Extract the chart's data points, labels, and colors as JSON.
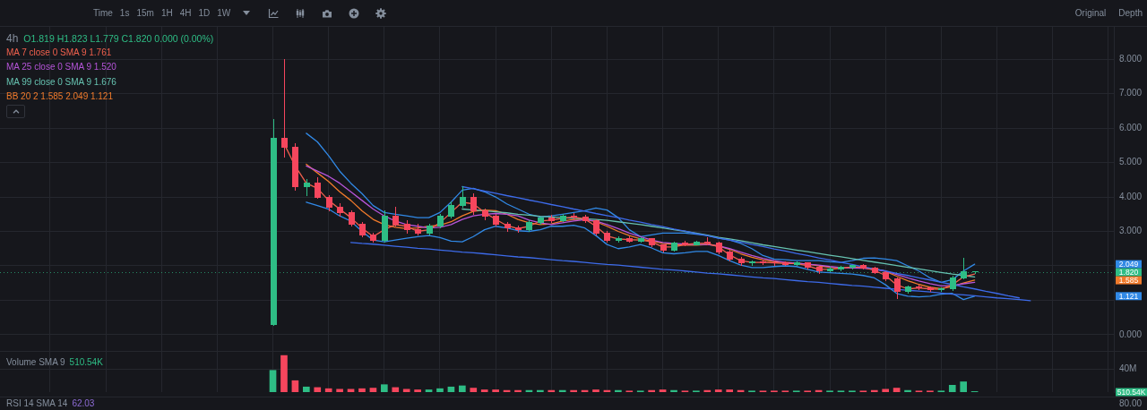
{
  "chart_data": [
    {
      "type": "other",
      "annotations": [
        "Time",
        "1s",
        "15m",
        "1H",
        "4H",
        "1D",
        "1W",
        "Original",
        "Depth"
      ]
    },
    {
      "type": "candlestick",
      "annotations": [
        "4h",
        "O1.819 H1.823 L1.779 C1.820 0.000 (0.00%)",
        {
          "text": "2.049",
          "y": 2.049
        },
        {
          "text": "1.585",
          "y": 1.585
        },
        {
          "text": "1.121",
          "y": 1.121
        }
      ],
      "categories": [
        null,
        null,
        null,
        null,
        null,
        null,
        null,
        null,
        null,
        null,
        null,
        null,
        null,
        null,
        null,
        null,
        null,
        null,
        null,
        null,
        null,
        null,
        null,
        null,
        null,
        null,
        null,
        null,
        null,
        null,
        null,
        null,
        null,
        null,
        null,
        null,
        null,
        null,
        null,
        null,
        null,
        null,
        null,
        null,
        null,
        null,
        null,
        null,
        null,
        null,
        null,
        null,
        null,
        null,
        null,
        null,
        null,
        null,
        null,
        null,
        null,
        null,
        null,
        null,
        null,
        null,
        null,
        null,
        null,
        null,
        null,
        null,
        null,
        null,
        null,
        null,
        null,
        null,
        null,
        null,
        null,
        null,
        null,
        null,
        null,
        null,
        null,
        null,
        null,
        null,
        null,
        null,
        null,
        null,
        null,
        null,
        null,
        null,
        null,
        null
      ],
      "ohlc": [
        null,
        null,
        null,
        null,
        null,
        null,
        null,
        null,
        null,
        null,
        null,
        null,
        null,
        null,
        null,
        null,
        null,
        null,
        null,
        null,
        null,
        null,
        null,
        null,
        [
          0.29,
          6.25,
          0.27,
          5.7
        ],
        [
          5.7,
          8,
          5.15,
          5.45
        ],
        [
          5.45,
          5.55,
          4.2,
          4.3
        ],
        [
          4.3,
          4.5,
          4.05,
          4.4
        ],
        [
          4.4,
          4.55,
          3.95,
          4
        ],
        [
          4,
          4.05,
          3.6,
          3.7
        ],
        [
          3.7,
          3.8,
          3.45,
          3.55
        ],
        [
          3.55,
          3.6,
          3.15,
          3.2
        ],
        [
          3.2,
          3.25,
          2.85,
          2.9
        ],
        [
          2.9,
          2.95,
          2.68,
          2.75
        ],
        [
          2.75,
          3.6,
          2.7,
          3.45
        ],
        [
          3.45,
          3.7,
          3.15,
          3.2
        ],
        [
          3.2,
          3.3,
          2.95,
          3.05
        ],
        [
          3.05,
          3.2,
          2.9,
          2.95
        ],
        [
          2.95,
          3.2,
          2.9,
          3.15
        ],
        [
          3.15,
          3.5,
          3.1,
          3.45
        ],
        [
          3.45,
          3.85,
          3.4,
          3.75
        ],
        [
          3.75,
          4.3,
          3.7,
          4
        ],
        [
          4,
          4.1,
          3.5,
          3.6
        ],
        [
          3.6,
          3.65,
          3.35,
          3.45
        ],
        [
          3.45,
          3.5,
          3.15,
          3.2
        ],
        [
          3.2,
          3.25,
          3,
          3.1
        ],
        [
          3.1,
          3.15,
          2.98,
          3.05
        ],
        [
          3.05,
          3.3,
          3,
          3.25
        ],
        [
          3.25,
          3.42,
          3.2,
          3.38
        ],
        [
          3.38,
          3.48,
          3.25,
          3.3
        ],
        [
          3.3,
          3.5,
          3.28,
          3.45
        ],
        [
          3.45,
          3.52,
          3.35,
          3.42
        ],
        [
          3.42,
          3.48,
          3.25,
          3.3
        ],
        [
          3.3,
          3.35,
          2.9,
          2.95
        ],
        [
          2.95,
          3,
          2.7,
          2.75
        ],
        [
          2.75,
          2.85,
          2.68,
          2.8
        ],
        [
          2.8,
          2.85,
          2.7,
          2.72
        ],
        [
          2.72,
          2.82,
          2.68,
          2.78
        ],
        [
          2.78,
          2.8,
          2.55,
          2.6
        ],
        [
          2.6,
          2.62,
          2.4,
          2.45
        ],
        [
          2.45,
          2.68,
          2.42,
          2.65
        ],
        [
          2.65,
          2.72,
          2.58,
          2.62
        ],
        [
          2.62,
          2.72,
          2.6,
          2.68
        ],
        [
          2.68,
          2.82,
          2.6,
          2.65
        ],
        [
          2.65,
          2.7,
          2.35,
          2.4
        ],
        [
          2.4,
          2.45,
          2.15,
          2.2
        ],
        [
          2.2,
          2.25,
          2.02,
          2.08
        ],
        [
          2.08,
          2.15,
          2,
          2.12
        ],
        [
          2.12,
          2.18,
          2.05,
          2.1
        ],
        [
          2.1,
          2.15,
          2.02,
          2.08
        ],
        [
          2.08,
          2.12,
          2,
          2.05
        ],
        [
          2.05,
          2.12,
          2,
          2.08
        ],
        [
          2.08,
          2.1,
          1.9,
          1.95
        ],
        [
          1.95,
          1.98,
          1.78,
          1.85
        ],
        [
          1.85,
          1.96,
          1.82,
          1.92
        ],
        [
          1.92,
          1.98,
          1.86,
          1.95
        ],
        [
          1.95,
          2.02,
          1.9,
          2
        ],
        [
          2,
          2.05,
          1.9,
          1.93
        ],
        [
          1.93,
          1.96,
          1.78,
          1.8
        ],
        [
          1.8,
          1.82,
          1.58,
          1.62
        ],
        [
          1.62,
          1.65,
          1.06,
          1.25
        ],
        [
          1.25,
          1.42,
          1.2,
          1.38
        ],
        [
          1.38,
          1.45,
          1.3,
          1.35
        ],
        [
          1.35,
          1.4,
          1.26,
          1.3
        ],
        [
          1.3,
          1.36,
          1.25,
          1.33
        ],
        [
          1.33,
          1.7,
          1.28,
          1.65
        ],
        [
          1.65,
          2.23,
          1.62,
          1.819
        ],
        [
          1.819,
          1.823,
          1.779,
          1.82
        ],
        null,
        null,
        null,
        null,
        null,
        null,
        null,
        null,
        null,
        null,
        null,
        null
      ],
      "colors": [
        null,
        null,
        null,
        null,
        null,
        null,
        null,
        null,
        null,
        null,
        null,
        null,
        null,
        null,
        null,
        null,
        null,
        null,
        null,
        null,
        null,
        null,
        null,
        null,
        "#2ebd85",
        "#f6465d",
        "#f6465d",
        "#2ebd85",
        "#f6465d",
        "#f6465d",
        "#f6465d",
        "#f6465d",
        "#f6465d",
        "#f6465d",
        "#2ebd85",
        "#f6465d",
        "#f6465d",
        "#f6465d",
        "#2ebd85",
        "#2ebd85",
        "#2ebd85",
        "#2ebd85",
        "#f6465d",
        "#f6465d",
        "#f6465d",
        "#f6465d",
        "#f6465d",
        "#2ebd85",
        "#2ebd85",
        "#f6465d",
        "#2ebd85",
        "#f6465d",
        "#f6465d",
        "#f6465d",
        "#f6465d",
        "#2ebd85",
        "#f6465d",
        "#2ebd85",
        "#f6465d",
        "#f6465d",
        "#2ebd85",
        "#f6465d",
        "#2ebd85",
        "#f6465d",
        "#f6465d",
        "#f6465d",
        "#f6465d",
        "#2ebd85",
        "#f6465d",
        "#f6465d",
        "#f6465d",
        "#2ebd85",
        "#f6465d",
        "#f6465d",
        "#2ebd85",
        "#2ebd85",
        "#2ebd85",
        "#f6465d",
        "#f6465d",
        "#f6465d",
        "#f6465d",
        "#2ebd85",
        "#f6465d",
        "#f6465d",
        "#2ebd85",
        "#2ebd85",
        "#2ebd85",
        "#2ebd85",
        null,
        null,
        null,
        null,
        null,
        null,
        null,
        null,
        null,
        null,
        null,
        null
      ],
      "series": [
        {
          "type": "line",
          "color": "#3d6bea",
          "values": [
            null,
            null,
            null,
            null,
            null,
            null,
            null,
            null,
            null,
            null,
            null,
            null,
            null,
            null,
            null,
            null,
            null,
            null,
            null,
            null,
            null,
            null,
            null,
            null,
            null,
            null,
            null,
            null,
            null,
            null,
            null,
            null,
            null,
            null,
            null,
            null,
            null,
            null,
            null,
            null,
            null,
            4.3,
            4.24,
            4.17,
            4.11,
            4.04,
            3.98,
            3.91,
            3.85,
            3.78,
            3.72,
            3.65,
            3.59,
            3.52,
            3.46,
            3.4,
            3.33,
            3.27,
            3.2,
            3.14,
            3.07,
            3.01,
            2.94,
            2.88,
            2.81,
            2.75,
            2.69,
            2.62,
            2.56,
            2.49,
            2.43,
            2.36,
            2.3,
            2.23,
            2.17,
            2.1,
            2.04,
            1.97,
            1.91,
            1.85,
            1.78,
            1.72,
            1.65,
            1.59,
            1.52,
            1.46,
            1.39,
            1.33,
            1.26,
            1.2,
            1.13,
            1.07,
            null,
            null,
            null,
            null,
            null,
            null,
            null,
            null
          ]
        },
        {
          "type": "line",
          "color": "#3d6bea",
          "values": [
            null,
            null,
            null,
            null,
            null,
            null,
            null,
            null,
            null,
            null,
            null,
            null,
            null,
            null,
            null,
            null,
            null,
            null,
            null,
            null,
            null,
            null,
            null,
            null,
            null,
            null,
            null,
            null,
            null,
            null,
            null,
            2.68,
            2.65,
            2.63,
            2.6,
            2.57,
            2.54,
            2.51,
            2.49,
            2.46,
            2.43,
            2.4,
            2.38,
            2.35,
            2.32,
            2.29,
            2.26,
            2.24,
            2.21,
            2.18,
            2.15,
            2.13,
            2.1,
            2.07,
            2.04,
            2.02,
            1.99,
            1.96,
            1.93,
            1.9,
            1.88,
            1.85,
            1.82,
            1.79,
            1.77,
            1.74,
            1.71,
            1.68,
            1.65,
            1.63,
            1.6,
            1.57,
            1.54,
            1.52,
            1.49,
            1.46,
            1.43,
            1.41,
            1.38,
            1.35,
            1.32,
            1.29,
            1.27,
            1.24,
            1.21,
            1.18,
            1.16,
            1.13,
            1.1,
            1.07,
            1.05,
            1.02,
            0.99,
            null,
            null,
            null,
            null,
            null,
            null,
            null
          ]
        },
        {
          "type": "line",
          "name": "MA 7 close 0 SMA 9 1.761",
          "color": "#f0604d",
          "values": [
            null,
            null,
            null,
            null,
            null,
            null,
            null,
            null,
            null,
            null,
            null,
            null,
            null,
            null,
            null,
            null,
            null,
            null,
            null,
            null,
            null,
            null,
            null,
            null,
            null,
            5.55,
            4.9,
            4.4,
            4.25,
            3.9,
            3.65,
            3.4,
            3.1,
            2.85,
            3.05,
            3.2,
            3.15,
            3,
            3.05,
            3.25,
            3.55,
            3.85,
            3.8,
            3.55,
            3.35,
            3.17,
            3.08,
            3.15,
            3.3,
            3.33,
            3.38,
            3.42,
            3.36,
            3.15,
            2.87,
            2.78,
            2.76,
            2.75,
            2.7,
            2.55,
            2.55,
            2.62,
            2.65,
            2.66,
            2.55,
            2.32,
            2.15,
            2.1,
            2.1,
            2.09,
            2.07,
            2.07,
            2,
            1.9,
            1.9,
            1.93,
            1.97,
            1.96,
            1.87,
            1.72,
            1.45,
            1.33,
            1.36,
            1.33,
            1.32,
            1.45,
            1.68,
            1.761,
            null,
            null,
            null,
            null,
            null,
            null,
            null,
            null,
            null,
            null,
            null,
            null
          ]
        },
        {
          "type": "line",
          "name": "MA 25 close 0 SMA 9 1.520",
          "color": "#b554d8",
          "values": [
            null,
            null,
            null,
            null,
            null,
            null,
            null,
            null,
            null,
            null,
            null,
            null,
            null,
            null,
            null,
            null,
            null,
            null,
            null,
            null,
            null,
            null,
            null,
            null,
            null,
            null,
            null,
            4.9,
            4.75,
            4.6,
            4.4,
            4.15,
            3.9,
            3.65,
            3.45,
            3.3,
            3.2,
            3.15,
            3.1,
            3.12,
            3.2,
            3.35,
            3.45,
            3.5,
            3.52,
            3.5,
            3.45,
            3.33,
            3.25,
            3.2,
            3.25,
            3.3,
            3.34,
            3.3,
            3.2,
            3.08,
            2.95,
            2.85,
            2.75,
            2.68,
            2.65,
            2.63,
            2.62,
            2.62,
            2.58,
            2.5,
            2.4,
            2.3,
            2.22,
            2.15,
            2.1,
            2.08,
            2.05,
            2.02,
            1.98,
            1.95,
            1.94,
            1.93,
            1.9,
            1.85,
            1.75,
            1.65,
            1.56,
            1.48,
            1.42,
            1.43,
            1.48,
            1.52,
            null,
            null,
            null,
            null,
            null,
            null,
            null,
            null,
            null,
            null,
            null,
            null
          ]
        },
        {
          "type": "line",
          "name": "MA 99 close 0 SMA 9 1.676",
          "color": "#66c2b0",
          "values": [
            null,
            null,
            null,
            null,
            null,
            null,
            null,
            null,
            null,
            null,
            null,
            null,
            null,
            null,
            null,
            null,
            null,
            null,
            null,
            null,
            null,
            null,
            null,
            null,
            null,
            null,
            null,
            null,
            null,
            null,
            null,
            null,
            null,
            null,
            null,
            null,
            null,
            null,
            null,
            null,
            null,
            3.65,
            3.62,
            3.6,
            3.57,
            3.54,
            3.5,
            3.47,
            3.44,
            3.42,
            3.4,
            3.38,
            3.37,
            3.35,
            3.32,
            3.28,
            3.24,
            3.2,
            3.15,
            3.1,
            3.05,
            3,
            2.95,
            2.89,
            2.83,
            2.78,
            2.73,
            2.67,
            2.61,
            2.56,
            2.51,
            2.46,
            2.41,
            2.36,
            2.31,
            2.26,
            2.21,
            2.16,
            2.11,
            2.06,
            2.01,
            1.96,
            1.91,
            1.86,
            1.81,
            1.76,
            1.72,
            1.676,
            null,
            null,
            null,
            null,
            null,
            null,
            null,
            null,
            null,
            null,
            null,
            null
          ]
        },
        {
          "type": "line",
          "name": "BB 20 2 1.585 2.049 1.121",
          "color": "#f07a2b",
          "values": [
            null,
            null,
            null,
            null,
            null,
            null,
            null,
            null,
            null,
            null,
            null,
            null,
            null,
            null,
            null,
            null,
            null,
            null,
            null,
            null,
            null,
            null,
            null,
            null,
            null,
            null,
            null,
            4.95,
            4.7,
            4.45,
            4.15,
            3.9,
            3.6,
            3.35,
            3.2,
            3.12,
            3.08,
            3.1,
            3.15,
            3.18,
            3.28,
            3.45,
            3.58,
            3.62,
            3.6,
            3.5,
            3.35,
            3.25,
            3.2,
            3.22,
            3.3,
            3.35,
            3.35,
            3.28,
            3.15,
            3,
            2.88,
            2.78,
            2.72,
            2.65,
            2.62,
            2.6,
            2.6,
            2.62,
            2.58,
            2.48,
            2.35,
            2.25,
            2.17,
            2.12,
            2.1,
            2.08,
            2.05,
            2,
            1.96,
            1.94,
            1.94,
            1.95,
            1.92,
            1.84,
            1.7,
            1.57,
            1.46,
            1.38,
            1.34,
            1.4,
            1.5,
            1.585,
            null,
            null,
            null,
            null,
            null,
            null,
            null,
            null,
            null,
            null,
            null,
            null
          ]
        },
        {
          "type": "line",
          "color": "#3189e6",
          "values": [
            null,
            null,
            null,
            null,
            null,
            null,
            null,
            null,
            null,
            null,
            null,
            null,
            null,
            null,
            null,
            null,
            null,
            null,
            null,
            null,
            null,
            null,
            null,
            null,
            null,
            null,
            null,
            5.85,
            5.6,
            5.2,
            4.75,
            4.4,
            4.1,
            3.75,
            3.55,
            3.5,
            3.45,
            3.4,
            3.4,
            3.55,
            3.85,
            4.2,
            4.25,
            4.15,
            4,
            3.8,
            3.65,
            3.5,
            3.42,
            3.45,
            3.5,
            3.55,
            3.6,
            3.68,
            3.62,
            3.4,
            3.05,
            2.85,
            2.9,
            2.95,
            2.95,
            2.95,
            2.92,
            2.88,
            2.8,
            2.75,
            2.65,
            2.5,
            2.3,
            2.2,
            2.18,
            2.15,
            2.15,
            2.15,
            2.12,
            2.1,
            2.15,
            2.22,
            2.23,
            2.2,
            2.15,
            2,
            1.85,
            1.65,
            1.52,
            1.6,
            1.85,
            2.049,
            null,
            null,
            null,
            null,
            null,
            null,
            null,
            null,
            null,
            null,
            null,
            null
          ]
        },
        {
          "type": "line",
          "color": "#3189e6",
          "values": [
            null,
            null,
            null,
            null,
            null,
            null,
            null,
            null,
            null,
            null,
            null,
            null,
            null,
            null,
            null,
            null,
            null,
            null,
            null,
            null,
            null,
            null,
            null,
            null,
            null,
            null,
            null,
            3.85,
            3.75,
            3.65,
            3.45,
            3.3,
            3,
            2.75,
            2.7,
            2.75,
            2.8,
            2.85,
            2.88,
            2.82,
            2.72,
            2.7,
            2.85,
            3.05,
            3.15,
            3.1,
            3.02,
            3,
            3.05,
            3.15,
            3.15,
            3.18,
            3.1,
            2.88,
            2.62,
            2.5,
            2.55,
            2.62,
            2.52,
            2.38,
            2.35,
            2.38,
            2.42,
            2.42,
            2.3,
            2.15,
            2.02,
            1.95,
            1.95,
            1.98,
            2,
            1.98,
            1.9,
            1.82,
            1.8,
            1.78,
            1.76,
            1.72,
            1.65,
            1.45,
            1.2,
            1.12,
            1.1,
            1.12,
            1.18,
            1.2,
            1.02,
            1.121,
            null,
            null,
            null,
            null,
            null,
            null,
            null,
            null,
            null,
            null,
            null,
            null
          ]
        }
      ],
      "ylim": [
        -0.47,
        8.94
      ],
      "yticks": [
        {
          "value": 0,
          "label": "0.000"
        },
        {
          "value": 1,
          "label": null
        },
        {
          "value": 2,
          "label": null
        },
        {
          "value": 3,
          "label": "3.000"
        },
        {
          "value": 4,
          "label": "4.000"
        },
        {
          "value": 5,
          "label": "5.000"
        },
        {
          "value": 6,
          "label": "6.000"
        },
        {
          "value": 7,
          "label": "7.000"
        },
        {
          "value": 8,
          "label": "8.000"
        }
      ],
      "ref_lines": [
        {
          "axis": "y",
          "value": 1.82,
          "label": "1.820",
          "color": "#2ebd85",
          "line_style": "dotted"
        }
      ],
      "grid": true,
      "tick_labels": "y",
      "legend": "top left"
    },
    {
      "type": "bar",
      "title": "Volume SMA 9",
      "annotations": [
        "510.54K"
      ],
      "categories": [
        null,
        null,
        null,
        null,
        null,
        null,
        null,
        null,
        null,
        null,
        null,
        null,
        null,
        null,
        null,
        null,
        null,
        null,
        null,
        null,
        null,
        null,
        null,
        null,
        null,
        null,
        null,
        null,
        null,
        null,
        null,
        null,
        null,
        null,
        null,
        null,
        null,
        null,
        null,
        null,
        null,
        null,
        null,
        null,
        null,
        null,
        null,
        null,
        null,
        null,
        null,
        null,
        null,
        null,
        null,
        null,
        null,
        null,
        null,
        null,
        null,
        null,
        null,
        null,
        null,
        null,
        null,
        null,
        null,
        null,
        null,
        null,
        null,
        null,
        null,
        null,
        null,
        null,
        null,
        null,
        null,
        null,
        null,
        null,
        null,
        null,
        null,
        null,
        null,
        null,
        null,
        null,
        null,
        null,
        null,
        null,
        null,
        null,
        null,
        null
      ],
      "values": [
        null,
        null,
        null,
        null,
        null,
        null,
        null,
        null,
        null,
        null,
        null,
        null,
        null,
        null,
        null,
        null,
        null,
        null,
        null,
        null,
        null,
        null,
        null,
        null,
        38000000,
        64000000,
        20000000,
        9000000,
        8000000,
        6000000,
        5000000,
        5000000,
        6000000,
        7000000,
        13000000,
        8000000,
        5000000,
        4000000,
        4000000,
        6000000,
        9000000,
        11000000,
        7000000,
        4000000,
        4000000,
        3000000,
        3000000,
        3000000,
        3000000,
        3000000,
        3000000,
        3000000,
        3000000,
        4000000,
        3000000,
        3000000,
        2000000,
        2000000,
        3000000,
        4000000,
        3000000,
        2000000,
        2000000,
        3000000,
        4000000,
        4000000,
        3000000,
        2000000,
        2000000,
        2000000,
        2000000,
        2000000,
        2000000,
        3000000,
        2000000,
        2000000,
        2000000,
        2000000,
        3000000,
        5000000,
        7000000,
        3000000,
        2000000,
        2000000,
        2000000,
        12000000,
        18000000,
        1000000,
        null,
        null,
        null,
        null,
        null,
        null,
        null,
        null,
        null,
        null,
        null,
        null
      ],
      "colors": [
        null,
        null,
        null,
        null,
        null,
        null,
        null,
        null,
        null,
        null,
        null,
        null,
        null,
        null,
        null,
        null,
        null,
        null,
        null,
        null,
        null,
        null,
        null,
        null,
        "#2ebd85",
        "#f6465d",
        "#f6465d",
        "#2ebd85",
        "#f6465d",
        "#f6465d",
        "#f6465d",
        "#f6465d",
        "#f6465d",
        "#f6465d",
        "#2ebd85",
        "#f6465d",
        "#f6465d",
        "#f6465d",
        "#2ebd85",
        "#2ebd85",
        "#2ebd85",
        "#2ebd85",
        "#f6465d",
        "#f6465d",
        "#f6465d",
        "#f6465d",
        "#f6465d",
        "#2ebd85",
        "#2ebd85",
        "#f6465d",
        "#2ebd85",
        "#f6465d",
        "#f6465d",
        "#f6465d",
        "#f6465d",
        "#2ebd85",
        "#f6465d",
        "#2ebd85",
        "#f6465d",
        "#f6465d",
        "#2ebd85",
        "#f6465d",
        "#2ebd85",
        "#f6465d",
        "#f6465d",
        "#f6465d",
        "#f6465d",
        "#2ebd85",
        "#f6465d",
        "#f6465d",
        "#f6465d",
        "#2ebd85",
        "#f6465d",
        "#f6465d",
        "#2ebd85",
        "#2ebd85",
        "#2ebd85",
        "#f6465d",
        "#f6465d",
        "#f6465d",
        "#f6465d",
        "#2ebd85",
        "#f6465d",
        "#f6465d",
        "#2ebd85",
        "#2ebd85",
        "#2ebd85",
        "#2ebd85",
        null,
        null,
        null,
        null,
        null,
        null,
        null,
        null,
        null,
        null,
        null,
        null
      ],
      "ylim": [
        0,
        72000000
      ],
      "yticks": [
        {
          "value": 40000000,
          "label": "40M"
        }
      ],
      "grid": true,
      "tick_labels": "y"
    },
    {
      "type": "other",
      "title": "RSI 14 SMA 14",
      "annotations": [
        "62.03",
        "80.00"
      ]
    }
  ]
}
